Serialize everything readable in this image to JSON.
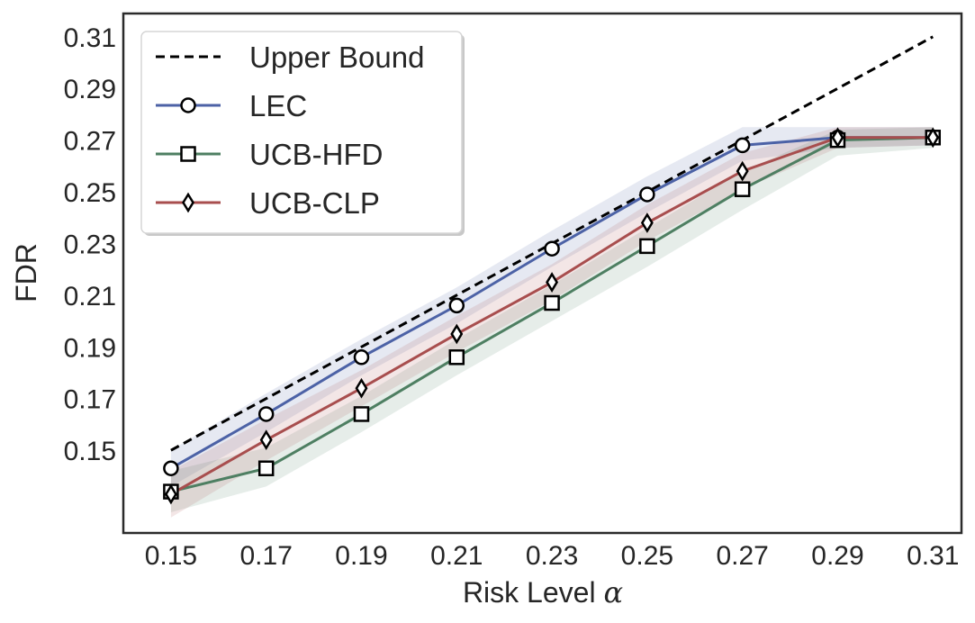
{
  "chart_data": {
    "type": "line",
    "title": "",
    "xlabel": "Risk Level",
    "xlabel_symbol": "α",
    "ylabel": "FDR",
    "x": [
      0.15,
      0.17,
      0.19,
      0.21,
      0.23,
      0.25,
      0.27,
      0.29,
      0.31
    ],
    "x_ticks": [
      "0.15",
      "0.17",
      "0.19",
      "0.21",
      "0.23",
      "0.25",
      "0.27",
      "0.29",
      "0.31"
    ],
    "y_ticks": [
      "0.15",
      "0.17",
      "0.19",
      "0.21",
      "0.23",
      "0.25",
      "0.27",
      "0.29",
      "0.31"
    ],
    "xlim": [
      0.14,
      0.316
    ],
    "ylim": [
      0.118,
      0.319
    ],
    "grid": false,
    "legend_position": "top-left",
    "series": [
      {
        "name": "Upper Bound",
        "style": "dashed",
        "color": "#000000",
        "marker": "none",
        "x": [
          0.15,
          0.31
        ],
        "values": [
          0.15,
          0.31
        ]
      },
      {
        "name": "LEC",
        "style": "solid",
        "color": "#4C62A6",
        "marker": "circle",
        "values": [
          0.143,
          0.164,
          0.186,
          0.206,
          0.228,
          0.249,
          0.268,
          0.271,
          0.271
        ],
        "band_lower": [
          0.136,
          0.157,
          0.179,
          0.199,
          0.221,
          0.242,
          0.262,
          0.267,
          0.268
        ],
        "band_upper": [
          0.15,
          0.172,
          0.193,
          0.213,
          0.235,
          0.256,
          0.275,
          0.275,
          0.275
        ]
      },
      {
        "name": "UCB-HFD",
        "style": "solid",
        "color": "#4E7F62",
        "marker": "square",
        "values": [
          0.134,
          0.143,
          0.164,
          0.186,
          0.207,
          0.229,
          0.251,
          0.27,
          0.271
        ],
        "band_lower": [
          0.126,
          0.136,
          0.157,
          0.179,
          0.2,
          0.221,
          0.243,
          0.264,
          0.267
        ],
        "band_upper": [
          0.142,
          0.151,
          0.171,
          0.193,
          0.214,
          0.236,
          0.258,
          0.274,
          0.275
        ]
      },
      {
        "name": "UCB-CLP",
        "style": "solid",
        "color": "#A84E4E",
        "marker": "diamond",
        "values": [
          0.133,
          0.154,
          0.174,
          0.195,
          0.215,
          0.238,
          0.258,
          0.271,
          0.271
        ],
        "band_lower": [
          0.124,
          0.146,
          0.167,
          0.188,
          0.208,
          0.231,
          0.251,
          0.267,
          0.268
        ],
        "band_upper": [
          0.142,
          0.162,
          0.181,
          0.202,
          0.222,
          0.245,
          0.265,
          0.275,
          0.275
        ]
      }
    ]
  }
}
